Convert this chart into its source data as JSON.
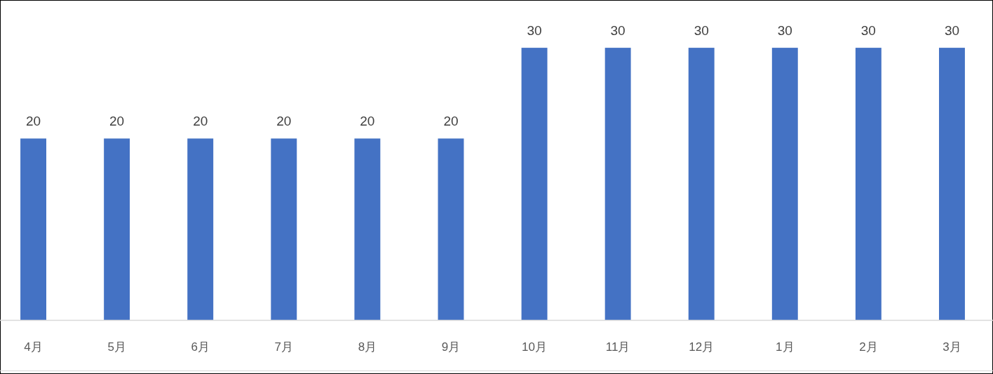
{
  "chart_data": {
    "type": "bar",
    "categories": [
      "4月",
      "5月",
      "6月",
      "7月",
      "8月",
      "9月",
      "10月",
      "11月",
      "12月",
      "1月",
      "2月",
      "3月"
    ],
    "values": [
      20,
      20,
      20,
      20,
      20,
      20,
      30,
      30,
      30,
      30,
      30,
      30
    ],
    "color": "#4472c4",
    "data_labels": true,
    "grid": false,
    "legend": false
  }
}
